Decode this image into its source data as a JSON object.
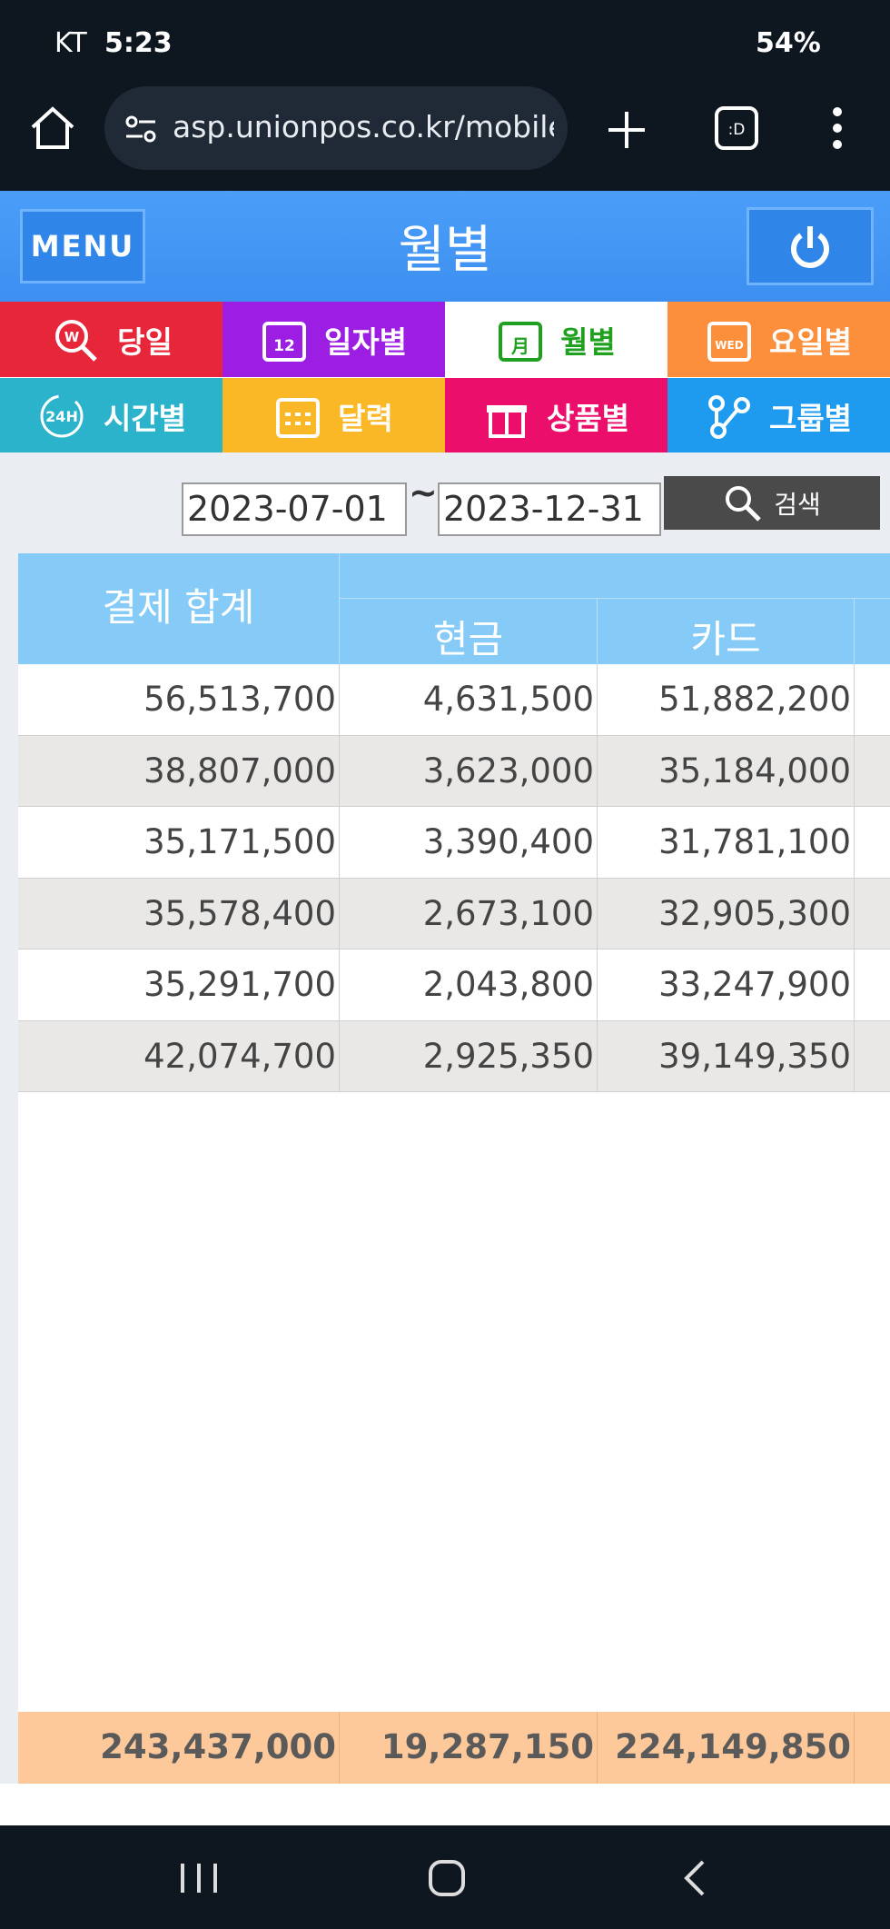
{
  "status_bar": {
    "carrier": "KT",
    "time": "5:23",
    "battery": "54%"
  },
  "browser": {
    "url": "asp.unionpos.co.kr/mobile/"
  },
  "header": {
    "menu_button": "MENU",
    "title": "월별"
  },
  "tabs": [
    "당일",
    "일자별",
    "월별",
    "요일별",
    "시간별",
    "달력",
    "상품별",
    "그룹별"
  ],
  "search": {
    "start_date": "2023-07-01",
    "separator": "~",
    "end_date": "2023-12-31",
    "button": "검색"
  },
  "table": {
    "columns": [
      "결제 합계",
      "현금",
      "카드"
    ],
    "rows": [
      [
        "56,513,700",
        "4,631,500",
        "51,882,200"
      ],
      [
        "38,807,000",
        "3,623,000",
        "35,184,000"
      ],
      [
        "35,171,500",
        "3,390,400",
        "31,781,100"
      ],
      [
        "35,578,400",
        "2,673,100",
        "32,905,300"
      ],
      [
        "35,291,700",
        "2,043,800",
        "33,247,900"
      ],
      [
        "42,074,700",
        "2,925,350",
        "39,149,350"
      ]
    ],
    "total": [
      "243,437,000",
      "19,287,150",
      "224,149,850"
    ]
  }
}
